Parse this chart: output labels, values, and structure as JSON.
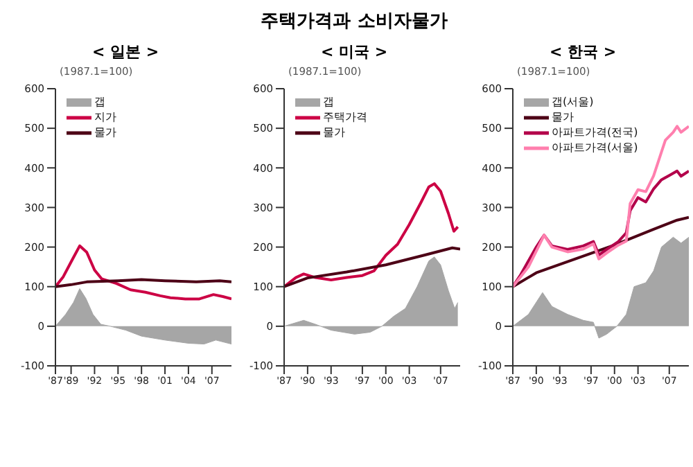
{
  "chart_data": [
    {
      "type": "line",
      "subtitle": "< 일본 >",
      "ylabel": "(1987.1=100)",
      "xlim": [
        1987,
        2009.5
      ],
      "xticks": [
        {
          "value": 1987,
          "label": "'87"
        },
        {
          "value": 1989,
          "label": "'89"
        },
        {
          "value": 1992,
          "label": "'92"
        },
        {
          "value": 1995,
          "label": "'95"
        },
        {
          "value": 1998,
          "label": "'98"
        },
        {
          "value": 2001,
          "label": "'01"
        },
        {
          "value": 2004,
          "label": "'04"
        },
        {
          "value": 2007,
          "label": "'07"
        }
      ],
      "ylim": [
        -100,
        600
      ],
      "yticks": [
        -100,
        0,
        100,
        200,
        300,
        400,
        500,
        600
      ],
      "legend": "top",
      "grid": false,
      "series": [
        {
          "name": "갭",
          "type": "area",
          "color": "#a6a6a6",
          "x": [
            1987,
            1988.3,
            1989.3,
            1990.1,
            1990.9,
            1991.8,
            1992.8,
            1994,
            1996,
            1998,
            2001,
            2004,
            2006,
            2007.5,
            2009.5
          ],
          "values": [
            0,
            30,
            60,
            95,
            70,
            30,
            5,
            0,
            -10,
            -25,
            -35,
            -43,
            -45,
            -35,
            -45
          ]
        },
        {
          "name": "지가",
          "color": "#cc0044",
          "x": [
            1987,
            1988,
            1989.2,
            1990.1,
            1991,
            1992,
            1992.9,
            1994.8,
            1996.6,
            1998.5,
            2000.4,
            2001.7,
            2003.6,
            2005.4,
            2007.2,
            2008.4,
            2009.5
          ],
          "values": [
            100,
            125,
            170,
            203,
            187,
            142,
            120,
            108,
            92,
            86,
            77,
            72,
            69,
            69,
            80,
            75,
            69
          ]
        },
        {
          "name": "물가",
          "color": "#4d0016",
          "x": [
            1987,
            1989,
            1991,
            1995,
            1998,
            2001,
            2005,
            2008,
            2009.5
          ],
          "values": [
            100,
            105,
            112,
            115,
            118,
            115,
            112,
            115,
            112
          ]
        }
      ]
    },
    {
      "type": "line",
      "title": "주택가격과 소비자물가",
      "subtitle": "< 미국 >",
      "ylabel": "(1987.1=100)",
      "xlim": [
        1987,
        2009.5
      ],
      "xticks": [
        {
          "value": 1987,
          "label": "'87"
        },
        {
          "value": 1990,
          "label": "'90"
        },
        {
          "value": 1993,
          "label": "'93"
        },
        {
          "value": 1997,
          "label": "'97"
        },
        {
          "value": 2000,
          "label": "'00"
        },
        {
          "value": 2003,
          "label": "'03"
        },
        {
          "value": 2007,
          "label": "'07"
        }
      ],
      "ylim": [
        -100,
        600
      ],
      "yticks": [
        -100,
        0,
        100,
        200,
        300,
        400,
        500,
        600
      ],
      "legend": "top",
      "grid": false,
      "series": [
        {
          "name": "갭",
          "type": "area",
          "color": "#a6a6a6",
          "x": [
            1987,
            1989.5,
            1991,
            1993,
            1996,
            1998,
            1999.5,
            2001,
            2002.5,
            2004,
            2005.5,
            2006.2,
            2007,
            2008,
            2008.8,
            2009.2
          ],
          "values": [
            0,
            15,
            5,
            -10,
            -20,
            -15,
            0,
            25,
            45,
            100,
            165,
            175,
            155,
            90,
            45,
            60
          ]
        },
        {
          "name": "주택가격",
          "color": "#cc0044",
          "x": [
            1987,
            1988.5,
            1989.5,
            1991,
            1993,
            1995,
            1997,
            1998.5,
            2000,
            2001.5,
            2003,
            2004.5,
            2005.5,
            2006.2,
            2007,
            2008,
            2008.7,
            2009.2
          ],
          "values": [
            100,
            123,
            132,
            123,
            117,
            123,
            128,
            140,
            179,
            207,
            257,
            313,
            352,
            360,
            341,
            285,
            240,
            251
          ]
        },
        {
          "name": "물가",
          "color": "#4d0016",
          "x": [
            1987,
            1990,
            1995,
            2000,
            2005,
            2008.5,
            2009.5
          ],
          "values": [
            100,
            122,
            137,
            155,
            180,
            198,
            195
          ]
        }
      ]
    },
    {
      "type": "line",
      "subtitle": "< 한국 >",
      "ylabel": "(1987.1=100)",
      "xlim": [
        1987,
        2009.5
      ],
      "xticks": [
        {
          "value": 1987,
          "label": "'87"
        },
        {
          "value": 1990,
          "label": "'90"
        },
        {
          "value": 1993,
          "label": "'93"
        },
        {
          "value": 1997,
          "label": "'97"
        },
        {
          "value": 2000,
          "label": "'00"
        },
        {
          "value": 2003,
          "label": "'03"
        },
        {
          "value": 2007,
          "label": "'07"
        }
      ],
      "ylim": [
        -100,
        600
      ],
      "yticks": [
        -100,
        0,
        100,
        200,
        300,
        400,
        500,
        600
      ],
      "legend": "top",
      "grid": false,
      "series": [
        {
          "name": "갭(서울)",
          "type": "area",
          "color": "#a6a6a6",
          "x": [
            1987,
            1989,
            1990.8,
            1992,
            1994,
            1996,
            1997.3,
            1998,
            1999,
            2000.3,
            2001.5,
            2002.5,
            2004,
            2005,
            2006,
            2007.5,
            2008.5,
            2009.5
          ],
          "values": [
            0,
            30,
            85,
            50,
            30,
            15,
            10,
            -30,
            -20,
            0,
            30,
            100,
            110,
            140,
            200,
            225,
            210,
            225
          ]
        },
        {
          "name": "물가",
          "color": "#4d0016",
          "x": [
            1987,
            1990,
            1995,
            2000,
            2005,
            2008,
            2009.5
          ],
          "values": [
            100,
            135,
            170,
            205,
            245,
            268,
            275
          ]
        },
        {
          "name": "아파트가격(전국)",
          "color": "#b3004a",
          "x": [
            1987,
            1988,
            1989,
            1990,
            1991,
            1992,
            1994,
            1996,
            1997.3,
            1998,
            1999,
            2000.5,
            2001.5,
            2002,
            2003,
            2004,
            2005,
            2006,
            2007,
            2008,
            2008.5,
            2009.5
          ],
          "values": [
            100,
            130,
            165,
            200,
            230,
            203,
            194,
            203,
            214,
            180,
            194,
            214,
            236,
            292,
            325,
            314,
            347,
            370,
            381,
            392,
            379,
            392
          ]
        },
        {
          "name": "아파트가격(서울)",
          "color": "#ff7fae",
          "x": [
            1987,
            1989,
            1990,
            1991,
            1992,
            1994,
            1996,
            1997.3,
            1998,
            1999,
            2000.5,
            2001.5,
            2002,
            2003,
            2004,
            2005,
            2006,
            2006.5,
            2007.5,
            2008,
            2008.5,
            2009.5
          ],
          "values": [
            100,
            150,
            190,
            230,
            200,
            188,
            195,
            208,
            170,
            185,
            205,
            215,
            310,
            345,
            340,
            380,
            440,
            470,
            490,
            505,
            490,
            505
          ]
        }
      ]
    }
  ]
}
